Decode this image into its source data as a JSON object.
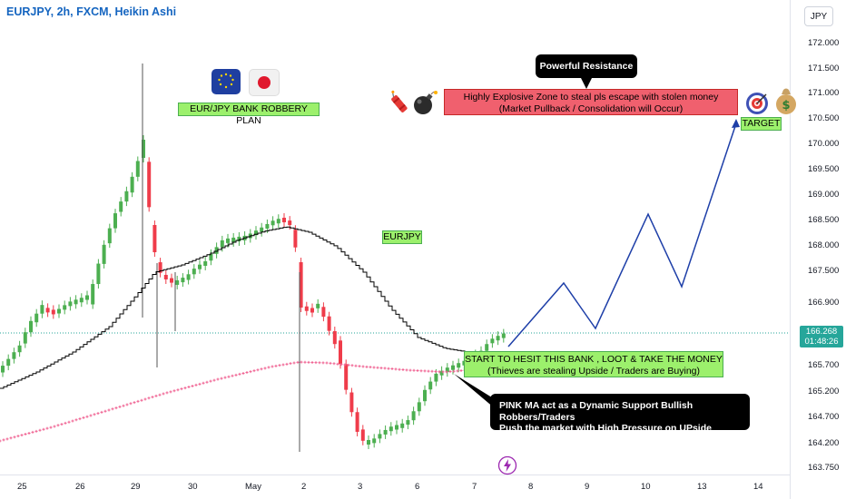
{
  "header": {
    "title": "EURJPY, 2h, FXCM, Heikin Ashi",
    "currency": "JPY"
  },
  "price_axis": {
    "labels": [
      "172.000",
      "171.500",
      "171.000",
      "170.500",
      "170.000",
      "169.500",
      "169.000",
      "168.500",
      "168.000",
      "167.500",
      "166.900",
      "165.700",
      "165.200",
      "164.700",
      "164.200",
      "163.750"
    ],
    "current_price": "166.268",
    "countdown": "01:48:26",
    "current_price_color": "#26a69a"
  },
  "time_axis": {
    "labels": [
      "25",
      "26",
      "29",
      "30",
      "May",
      "2",
      "3",
      "6",
      "7",
      "8",
      "9",
      "10",
      "13",
      "14"
    ]
  },
  "annotations": {
    "plan_label": "EUR/JPY BANK ROBBERY PLAN",
    "symbol_label": "EURJPY",
    "resistance_label": "Powerful Resistance",
    "zone_line1": "Highly Explosive Zone to steal pls escape with stolen money",
    "zone_line2": "(Market Pullback / Consolidation will Occur)",
    "target_label": "TARGET",
    "start_line1": "START TO HESIT THIS BANK , LOOT & TAKE THE MONEY",
    "start_line2": "(Thieves are stealing Upside / Traders are Buying)",
    "ma_line1": "PINK MA act as a Dynamic Support Bullish Robbers/Traders",
    "ma_line2": "Push the market with High Pressure on UPside"
  },
  "colors": {
    "bull_candle": "#4caf50",
    "bear_candle": "#ef3c4a",
    "pink_ma": "#f06292",
    "black_ma": "#000000",
    "projection": "#1e3fa8",
    "title": "#1565c0"
  },
  "icons": [
    "eu-flag-icon",
    "japan-flag-icon",
    "dynamite-icon",
    "bomb-icon",
    "target-icon",
    "money-bag-icon",
    "lightning-icon"
  ]
}
